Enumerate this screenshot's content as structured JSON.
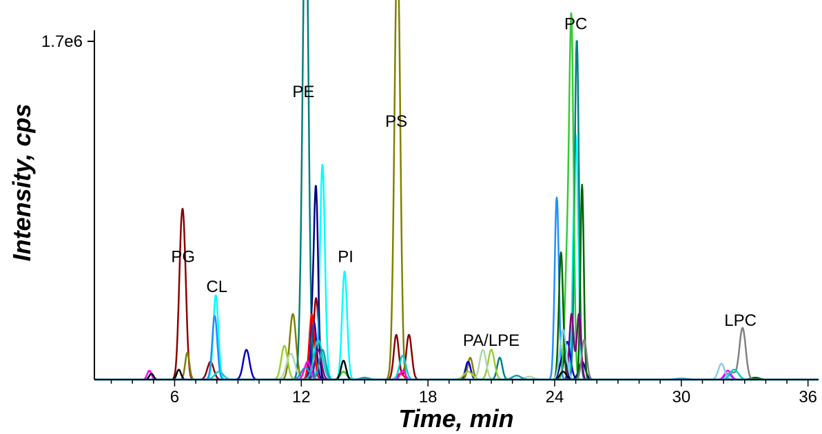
{
  "chart_data": {
    "type": "line",
    "xlabel": "Time, min",
    "ylabel": "Intensity, cps",
    "xlim": [
      2.2,
      36.5
    ],
    "ylim": [
      0,
      1700000
    ],
    "x_ticks": [
      6,
      12,
      18,
      24,
      30,
      36
    ],
    "y_tick_labels": [
      "1.7e6"
    ],
    "y_tick_values": [
      1700000
    ],
    "grid": false,
    "annotations": [
      {
        "text": "PG",
        "x": 6.4,
        "y": 590000
      },
      {
        "text": "CL",
        "x": 8.0,
        "y": 440000
      },
      {
        "text": "PE",
        "x": 12.1,
        "y": 1420000
      },
      {
        "text": "PI",
        "x": 14.1,
        "y": 590000
      },
      {
        "text": "PS",
        "x": 16.5,
        "y": 1270000
      },
      {
        "text": "PA/LPE",
        "x": 21.0,
        "y": 170000
      },
      {
        "text": "PC",
        "x": 25.0,
        "y": 1760000
      },
      {
        "text": "LPC",
        "x": 32.8,
        "y": 270000
      }
    ],
    "series": [
      {
        "color": "#8b0000",
        "peaks": [
          [
            6.3,
            525000,
            0.12
          ],
          [
            6.45,
            520000,
            0.12
          ],
          [
            7.7,
            90000,
            0.15
          ],
          [
            12.7,
            410000,
            0.12
          ],
          [
            16.5,
            225000,
            0.12
          ],
          [
            17.1,
            225000,
            0.13
          ]
        ]
      },
      {
        "color": "#808000",
        "peaks": [
          [
            6.6,
            135000,
            0.1
          ],
          [
            11.6,
            330000,
            0.15
          ],
          [
            16.5,
            1230000,
            0.13
          ],
          [
            16.6,
            1150000,
            0.12
          ],
          [
            20.0,
            110000,
            0.12
          ]
        ]
      },
      {
        "color": "#00ffff",
        "peaks": [
          [
            7.95,
            425000,
            0.12
          ],
          [
            13.0,
            1080000,
            0.12
          ],
          [
            14.05,
            545000,
            0.12
          ],
          [
            25.0,
            1230000,
            0.12
          ]
        ]
      },
      {
        "color": "#1e90ff",
        "peaks": [
          [
            7.9,
            320000,
            0.12
          ],
          [
            24.1,
            915000,
            0.1
          ],
          [
            32.2,
            30000,
            0.15
          ]
        ]
      },
      {
        "color": "#0000cd",
        "peaks": [
          [
            9.4,
            150000,
            0.15
          ],
          [
            12.6,
            290000,
            0.12
          ],
          [
            19.9,
            90000,
            0.12
          ],
          [
            24.6,
            190000,
            0.15
          ]
        ]
      },
      {
        "color": "#008080",
        "peaks": [
          [
            12.15,
            1360000,
            0.14
          ],
          [
            12.25,
            1300000,
            0.12
          ],
          [
            21.4,
            110000,
            0.12
          ],
          [
            25.05,
            1710000,
            0.1
          ]
        ]
      },
      {
        "color": "#000080",
        "peaks": [
          [
            12.7,
            910000,
            0.1
          ],
          [
            12.5,
            250000,
            0.12
          ],
          [
            24.4,
            120000,
            0.15
          ],
          [
            25.3,
            90000,
            0.15
          ]
        ]
      },
      {
        "color": "#32cd32",
        "peaks": [
          [
            24.8,
            1680000,
            0.1
          ],
          [
            24.6,
            600000,
            0.12
          ],
          [
            14.0,
            40000,
            0.15
          ]
        ]
      },
      {
        "color": "#006400",
        "peaks": [
          [
            24.3,
            640000,
            0.1
          ],
          [
            25.3,
            980000,
            0.08
          ],
          [
            33.5,
            10000,
            0.2
          ]
        ]
      },
      {
        "color": "#800080",
        "peaks": [
          [
            24.8,
            330000,
            0.1
          ],
          [
            25.15,
            330000,
            0.1
          ],
          [
            12.8,
            150000,
            0.15
          ]
        ]
      },
      {
        "color": "#808080",
        "peaks": [
          [
            32.9,
            260000,
            0.15
          ],
          [
            25.4,
            200000,
            0.12
          ],
          [
            32.4,
            35000,
            0.15
          ]
        ]
      },
      {
        "color": "#9acd32",
        "peaks": [
          [
            11.2,
            170000,
            0.15
          ],
          [
            21.0,
            150000,
            0.15
          ],
          [
            19.9,
            40000,
            0.2
          ]
        ]
      },
      {
        "color": "#b0d8b0",
        "peaks": [
          [
            20.6,
            150000,
            0.15
          ],
          [
            11.5,
            130000,
            0.2
          ],
          [
            22.8,
            15000,
            0.2
          ]
        ]
      },
      {
        "color": "#ff0000",
        "peaks": [
          [
            12.5,
            330000,
            0.12
          ],
          [
            16.7,
            30000,
            0.15
          ]
        ]
      },
      {
        "color": "#ff00ff",
        "peaks": [
          [
            4.8,
            45000,
            0.1
          ],
          [
            12.3,
            90000,
            0.15
          ],
          [
            16.8,
            45000,
            0.12
          ],
          [
            32.2,
            45000,
            0.15
          ]
        ]
      },
      {
        "color": "#87ceeb",
        "peaks": [
          [
            31.9,
            80000,
            0.15
          ],
          [
            24.4,
            250000,
            0.15
          ]
        ]
      },
      {
        "color": "#000000",
        "peaks": [
          [
            4.9,
            30000,
            0.1
          ],
          [
            6.2,
            50000,
            0.1
          ],
          [
            14.0,
            95000,
            0.12
          ],
          [
            24.4,
            40000,
            0.15
          ]
        ]
      },
      {
        "color": "#00ced1",
        "peaks": [
          [
            16.8,
            120000,
            0.15
          ],
          [
            12.8,
            200000,
            0.2
          ],
          [
            8.1,
            40000,
            0.2
          ],
          [
            32.5,
            50000,
            0.2
          ]
        ]
      },
      {
        "color": "#1a9aa8",
        "peaks": [
          [
            13.0,
            150000,
            0.15
          ],
          [
            15.0,
            10000,
            0.2
          ],
          [
            22.2,
            20000,
            0.2
          ]
        ]
      },
      {
        "color": "#2e8bc0",
        "peaks": [
          [
            12.2,
            60000,
            0.2
          ],
          [
            30.0,
            5000,
            0.3
          ]
        ]
      }
    ]
  }
}
